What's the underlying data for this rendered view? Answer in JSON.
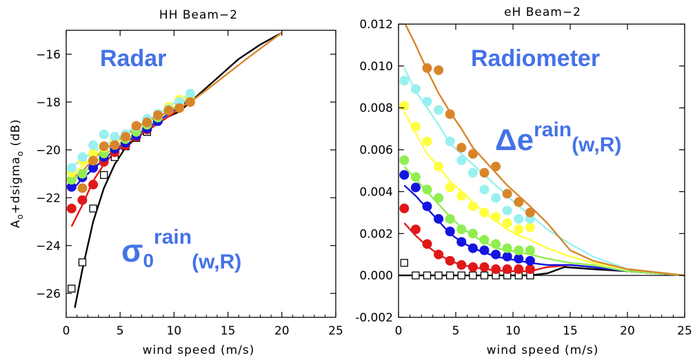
{
  "colors": {
    "black": "#000000",
    "red": "#e01818",
    "blue": "#1414e0",
    "green": "#90ee50",
    "yellow": "#ffff40",
    "cyan": "#99f0f0",
    "orange": "#d8852a",
    "annotation": "#4472e8"
  },
  "chart_data": [
    {
      "type": "line",
      "title": "HH Beam−2",
      "xlabel": "wind speed (m/s)",
      "ylabel": "A",
      "ylabel_parts": [
        "A",
        "o",
        "+dsigma",
        "o",
        " (dB)"
      ],
      "xlim": [
        0,
        25
      ],
      "ylim": [
        -27,
        -15
      ],
      "xticks": [
        0,
        5,
        10,
        15,
        20,
        25
      ],
      "yticks": [
        -26,
        -24,
        -22,
        -20,
        -18,
        -16
      ],
      "xtick_labels": [
        "0",
        "5",
        "10",
        "15",
        "20",
        "25"
      ],
      "ytick_labels": [
        "−26",
        "−24",
        "−22",
        "−20",
        "−18",
        "−16"
      ],
      "annotations": [
        "Radar",
        "σ",
        "0",
        "rain",
        "(w,R)"
      ],
      "series": [
        {
          "color": "black",
          "marker": "square",
          "line_x": [
            0.8,
            1.5,
            2.5,
            3.5,
            4.5,
            5.5,
            6.5,
            7.5,
            8.5,
            9.5,
            10.5,
            11.5,
            12.5,
            14,
            16,
            18,
            20
          ],
          "line_y": [
            -26.6,
            -25.0,
            -23.0,
            -21.6,
            -20.6,
            -19.9,
            -19.5,
            -19.2,
            -18.9,
            -18.6,
            -18.4,
            -18.0,
            -17.6,
            -17.0,
            -16.2,
            -15.6,
            -15.1
          ],
          "points_x": [
            0.5,
            1.5,
            2.5,
            3.5,
            4.5,
            5.5,
            6.5,
            7.5
          ],
          "points_y": [
            -25.8,
            -24.7,
            -22.45,
            -21.05,
            -20.3,
            -19.85,
            -19.5,
            -19.25
          ]
        },
        {
          "color": "red",
          "marker": "circle",
          "line_x": [
            0.5,
            1.5,
            2.5,
            3.5,
            4.5,
            5.5,
            6.5,
            7.5,
            8.5,
            9.5,
            10.5,
            11.5
          ],
          "line_y": [
            -23.2,
            -22.3,
            -21.3,
            -20.6,
            -20.1,
            -19.8,
            -19.5,
            -19.2,
            -18.9,
            -18.6,
            -18.3,
            -18.0
          ],
          "points_x": [
            0.5,
            1.5,
            2.5,
            3.5,
            4.5,
            5.5,
            6.5,
            7.5
          ],
          "points_y": [
            -22.45,
            -22.1,
            -21.45,
            -20.5,
            -20.1,
            -19.8,
            -19.45,
            -19.15
          ]
        },
        {
          "color": "blue",
          "marker": "circle",
          "line_x": [
            0.5,
            1.5,
            2.5,
            3.5,
            4.5,
            5.5,
            6.5,
            7.5,
            8.5,
            9.5,
            10.5,
            11.5
          ],
          "line_y": [
            -21.7,
            -21.2,
            -20.8,
            -20.4,
            -20.0,
            -19.7,
            -19.4,
            -19.1,
            -18.8,
            -18.5,
            -18.2,
            -17.9
          ],
          "points_x": [
            0.5,
            1.5,
            2.5,
            3.5,
            4.5,
            5.5,
            6.5,
            7.5,
            8.5
          ],
          "points_y": [
            -21.55,
            -21.15,
            -20.75,
            -20.3,
            -19.95,
            -19.7,
            -19.4,
            -19.1,
            -18.8
          ]
        },
        {
          "color": "green",
          "marker": "circle",
          "line_x": [
            0.5,
            1.5,
            2.5,
            3.5,
            4.5,
            5.5,
            6.5,
            7.5,
            8.5,
            9.5,
            10.5,
            11.5
          ],
          "line_y": [
            -21.3,
            -21.0,
            -20.6,
            -20.2,
            -19.9,
            -19.6,
            -19.3,
            -19.0,
            -18.7,
            -18.4,
            -18.1,
            -17.8
          ],
          "points_x": [
            0.5,
            1.5,
            2.5,
            3.5,
            4.5,
            5.5,
            6.5,
            7.5,
            8.5,
            9.5,
            10.5,
            11.5
          ],
          "points_y": [
            -21.25,
            -21.0,
            -20.45,
            -20.15,
            -19.8,
            -19.55,
            -19.25,
            -18.95,
            -18.65,
            -18.35,
            -18.05,
            -17.75
          ]
        },
        {
          "color": "yellow",
          "marker": "circle",
          "line_x": [
            0.5,
            1.5,
            2.5,
            3.5,
            4.5,
            5.5,
            6.5,
            7.5,
            8.5,
            9.5,
            10.5,
            11.5
          ],
          "line_y": [
            -21.0,
            -20.7,
            -20.3,
            -20.0,
            -19.7,
            -19.4,
            -19.1,
            -18.8,
            -18.5,
            -18.2,
            -17.9,
            -17.7
          ],
          "points_x": [
            0.5,
            1.5,
            2.5,
            3.5,
            4.5,
            5.5,
            6.5,
            7.5,
            8.5,
            9.5,
            10.5,
            11.5
          ],
          "points_y": [
            -20.95,
            -20.45,
            -20.15,
            -19.9,
            -19.6,
            -19.35,
            -19.05,
            -18.8,
            -18.5,
            -18.2,
            -17.9,
            -17.7
          ]
        },
        {
          "color": "cyan",
          "marker": "circle",
          "line_x": [
            0.5,
            1.5,
            2.5,
            3.5,
            4.5,
            5.5,
            6.5,
            7.5,
            8.5,
            9.5,
            10.5,
            11.5
          ],
          "line_y": [
            -20.7,
            -20.4,
            -20.1,
            -19.8,
            -19.6,
            -19.3,
            -19.0,
            -18.8,
            -18.5,
            -18.2,
            -17.9,
            -17.7
          ],
          "points_x": [
            0.5,
            1.5,
            2.5,
            3.5,
            4.5,
            5.5,
            6.5,
            7.5,
            8.5,
            9.5,
            10.5,
            11.5
          ],
          "points_y": [
            -20.75,
            -20.3,
            -19.8,
            -19.35,
            -19.45,
            -19.35,
            -19.05,
            -18.7,
            -18.5,
            -18.3,
            -18.0,
            -17.65
          ]
        },
        {
          "color": "orange",
          "marker": "circle",
          "line_x": [
            0.5,
            1.5,
            2.5,
            3.5,
            4.5,
            5.5,
            6.5,
            7.5,
            8.5,
            9.5,
            10.5,
            11.5,
            13,
            15,
            17,
            20
          ],
          "line_y": [
            -21.2,
            -20.9,
            -20.4,
            -20.0,
            -19.7,
            -19.4,
            -19.1,
            -18.8,
            -18.6,
            -18.4,
            -18.2,
            -18.0,
            -17.5,
            -16.8,
            -16.1,
            -15.1
          ],
          "points_x": [
            1.5,
            2.5,
            3.5,
            4.5,
            5.5,
            6.5,
            7.5,
            8.5,
            9.5,
            10.5,
            11.5
          ],
          "points_y": [
            -21.6,
            -20.45,
            -19.85,
            -19.8,
            -19.45,
            -19.0,
            -18.85,
            -18.55,
            -18.35,
            -18.25,
            -18.0
          ]
        }
      ]
    },
    {
      "type": "line",
      "title": "eH Beam−2",
      "xlabel": "wind speed (m/s)",
      "ylabel": "",
      "xlim": [
        0,
        25
      ],
      "ylim": [
        -0.002,
        0.012
      ],
      "xticks": [
        0,
        5,
        10,
        15,
        20,
        25
      ],
      "yticks": [
        -0.002,
        0.0,
        0.002,
        0.004,
        0.006,
        0.008,
        0.01,
        0.012
      ],
      "xtick_labels": [
        "0",
        "5",
        "10",
        "15",
        "20",
        "25"
      ],
      "ytick_labels": [
        "-0.002",
        "0.000",
        "0.002",
        "0.004",
        "0.006",
        "0.008",
        "0.010",
        "0.012"
      ],
      "annotations": [
        "Radiometer",
        "Δe",
        "rain",
        "(w,R)"
      ],
      "series": [
        {
          "color": "black",
          "marker": "square",
          "line_x": [
            0,
            2,
            4,
            6,
            8,
            10,
            11.5,
            13,
            14.5,
            17,
            20,
            25
          ],
          "line_y": [
            0.0,
            0.0,
            0.0,
            0.0,
            0.0,
            0.0,
            0.0,
            0.0001,
            0.0004,
            0.0003,
            0.0002,
            0.0
          ],
          "points_x": [
            0.5,
            1.5,
            2.5,
            3.5,
            4.5,
            5.5,
            6.5,
            7.5,
            8.5,
            9.5,
            10.5,
            11.5
          ],
          "points_y": [
            0.0006,
            0.0,
            0.0,
            0.0,
            0.0,
            0.0,
            0.0,
            0.0,
            0.0,
            0.0,
            0.0,
            0.0
          ]
        },
        {
          "color": "red",
          "marker": "circle",
          "line_x": [
            0.5,
            1.5,
            2.5,
            3.5,
            4.5,
            5.5,
            6.5,
            7.5,
            8.5,
            9.5,
            10.5,
            11.5,
            13,
            15,
            17,
            20,
            25
          ],
          "line_y": [
            0.0025,
            0.0019,
            0.0014,
            0.001,
            0.0007,
            0.0005,
            0.0004,
            0.0003,
            0.00025,
            0.0002,
            0.0002,
            0.0002,
            0.0004,
            0.0005,
            0.0004,
            0.0002,
            0.0
          ],
          "points_x": [
            0.5,
            1.5,
            2.5,
            3.5,
            4.5,
            5.5,
            6.5,
            7.5,
            8.5,
            9.5,
            10.5,
            11.5
          ],
          "points_y": [
            0.0032,
            0.0022,
            0.0015,
            0.001,
            0.0007,
            0.0005,
            0.0004,
            0.0004,
            0.0003,
            0.0003,
            0.0003,
            0.0003
          ]
        },
        {
          "color": "blue",
          "marker": "circle",
          "line_x": [
            0.5,
            1.5,
            2.5,
            3.5,
            4.5,
            5.5,
            6.5,
            7.5,
            8.5,
            9.5,
            10.5,
            11.5,
            13,
            15,
            17,
            20,
            25
          ],
          "line_y": [
            0.0043,
            0.0038,
            0.0032,
            0.0026,
            0.002,
            0.0016,
            0.0013,
            0.0011,
            0.0009,
            0.0008,
            0.0007,
            0.0006,
            0.0005,
            0.0005,
            0.0004,
            0.0002,
            0.0
          ],
          "points_x": [
            0.5,
            1.5,
            2.5,
            3.5,
            4.5,
            5.5,
            6.5,
            7.5,
            8.5,
            9.5,
            10.5,
            11.5
          ],
          "points_y": [
            0.0048,
            0.0042,
            0.0033,
            0.0027,
            0.0021,
            0.0016,
            0.0013,
            0.0012,
            0.001,
            0.0009,
            0.0008,
            0.0007
          ]
        },
        {
          "color": "green",
          "marker": "circle",
          "line_x": [
            0.5,
            1.5,
            2.5,
            3.5,
            4.5,
            5.5,
            6.5,
            7.5,
            8.5,
            9.5,
            10.5,
            11.5,
            13,
            15,
            17,
            20,
            25
          ],
          "line_y": [
            0.0052,
            0.0046,
            0.004,
            0.0034,
            0.0028,
            0.0023,
            0.0019,
            0.0016,
            0.0013,
            0.0012,
            0.0011,
            0.001,
            0.0008,
            0.0006,
            0.0005,
            0.0002,
            0.0
          ],
          "points_x": [
            0.5,
            1.5,
            2.5,
            3.5,
            4.5,
            5.5,
            6.5,
            7.5,
            8.5,
            9.5,
            10.5,
            11.5
          ],
          "points_y": [
            0.0055,
            0.0047,
            0.0041,
            0.0037,
            0.0027,
            0.0022,
            0.002,
            0.0017,
            0.0015,
            0.0013,
            0.0012,
            0.0012
          ]
        },
        {
          "color": "yellow",
          "marker": "circle",
          "line_x": [
            0.5,
            1.5,
            2.5,
            3.5,
            4.5,
            5.5,
            6.5,
            7.5,
            8.5,
            9.5,
            10.5,
            11.5,
            13,
            15,
            17,
            20,
            25
          ],
          "line_y": [
            0.0078,
            0.0068,
            0.0058,
            0.0052,
            0.0045,
            0.004,
            0.0035,
            0.003,
            0.0026,
            0.0022,
            0.0019,
            0.0017,
            0.0013,
            0.0009,
            0.0006,
            0.0003,
            0.0
          ],
          "points_x": [
            0.5,
            1.5,
            2.5,
            3.5,
            4.5,
            5.5,
            6.5,
            7.5,
            8.5,
            9.5,
            10.5,
            11.5
          ],
          "points_y": [
            0.0081,
            0.0071,
            0.0064,
            0.0052,
            0.0042,
            0.0038,
            0.0033,
            0.003,
            0.0028,
            0.0025,
            0.0022,
            0.0023
          ]
        },
        {
          "color": "cyan",
          "marker": "circle",
          "line_x": [
            0.5,
            1.5,
            2.5,
            3.5,
            4.5,
            5.5,
            6.5,
            7.5,
            8.5,
            9.5,
            10.5,
            11.5,
            13,
            15,
            17,
            20,
            25
          ],
          "line_y": [
            0.0099,
            0.0088,
            0.008,
            0.0072,
            0.0063,
            0.0058,
            0.0053,
            0.0048,
            0.0043,
            0.0038,
            0.0033,
            0.0029,
            0.0022,
            0.0015,
            0.0009,
            0.0003,
            0.0
          ],
          "points_x": [
            0.5,
            1.5,
            2.5,
            3.5,
            4.5,
            5.5,
            6.5,
            7.5,
            8.5,
            9.5,
            10.5,
            11.5
          ],
          "points_y": [
            0.0093,
            0.0089,
            0.0083,
            0.0079,
            0.0064,
            0.0055,
            0.0049,
            0.0041,
            0.0037,
            0.0031,
            0.0027,
            0.0027
          ]
        },
        {
          "color": "orange",
          "marker": "circle",
          "line_x": [
            0.5,
            1.5,
            2.5,
            3.5,
            4.5,
            5.5,
            6.5,
            7.5,
            8.5,
            9.5,
            10.5,
            11.5,
            13,
            15,
            17,
            20,
            25
          ],
          "line_y": [
            0.0121,
            0.011,
            0.0098,
            0.0087,
            0.0078,
            0.007,
            0.0061,
            0.0055,
            0.0049,
            0.0043,
            0.0038,
            0.0033,
            0.0025,
            0.0012,
            0.0007,
            0.0003,
            0.0
          ],
          "points_x": [
            2.5,
            3.5,
            4.5,
            5.5,
            6.5,
            7.5,
            8.5,
            9.5,
            10.5,
            11.5
          ],
          "points_y": [
            0.0099,
            0.0098,
            0.0077,
            0.0061,
            0.0058,
            0.0049,
            0.0052,
            0.0039,
            0.0035,
            0.003
          ]
        }
      ]
    }
  ]
}
